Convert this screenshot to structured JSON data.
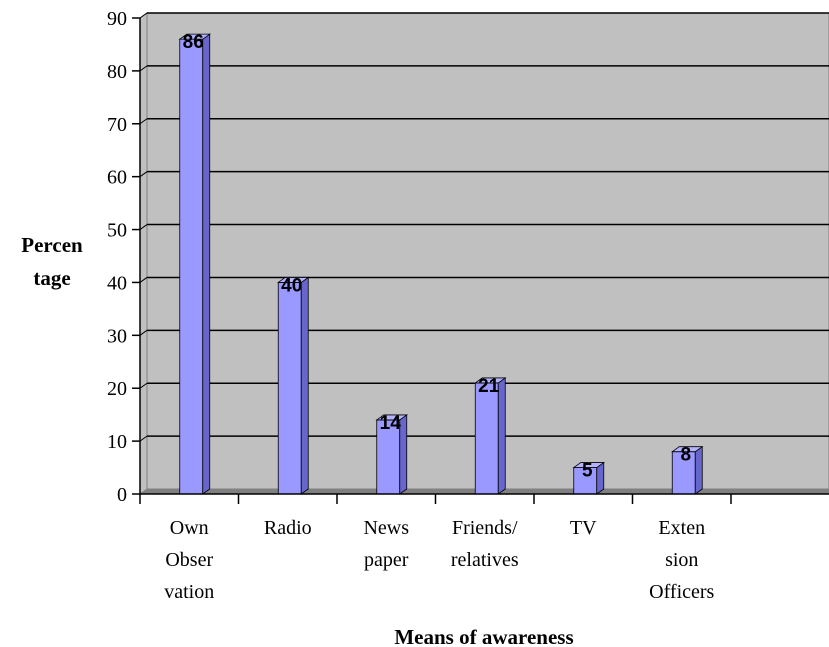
{
  "chart_data": {
    "type": "bar",
    "categories": [
      [
        "Own",
        "Obser",
        "vation"
      ],
      [
        "Radio"
      ],
      [
        "News",
        "paper"
      ],
      [
        "Friends/",
        "relatives"
      ],
      [
        "TV"
      ],
      [
        "Exten",
        "sion",
        "Officers"
      ]
    ],
    "values": [
      86,
      40,
      14,
      21,
      5,
      8
    ],
    "xlabel": "Means of awareness",
    "ylabel": [
      "Percen",
      "tage"
    ],
    "ylim": [
      0,
      90
    ],
    "yticks": [
      0,
      10,
      20,
      30,
      40,
      50,
      60,
      70,
      80,
      90
    ],
    "grid": true,
    "colors": {
      "bar_front": "#9999ff",
      "bar_side": "#6666cc",
      "bar_top": "#b3b3ff",
      "plot_back": "#c0c0c0",
      "floor": "#808080",
      "gridline": "#000000"
    }
  }
}
